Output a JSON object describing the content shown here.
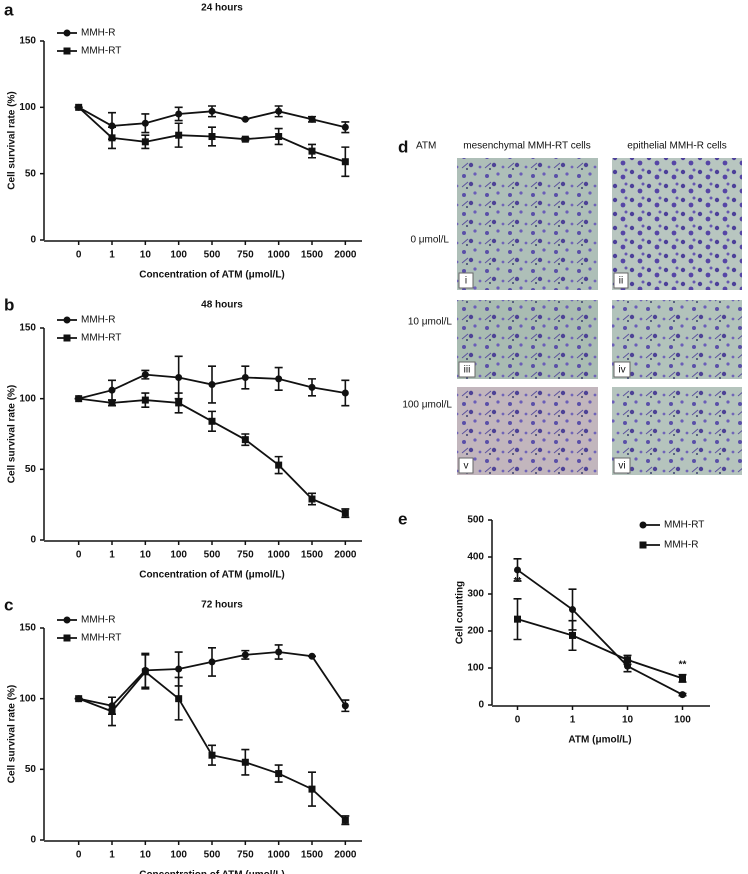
{
  "chart_data": [
    {
      "type": "line",
      "panel": "a",
      "title": "24 hours",
      "x_label": "Concentration of ATM (μmol/L)",
      "y_label": "Cell survival rate (%)",
      "categories": [
        "0",
        "1",
        "10",
        "100",
        "500",
        "750",
        "1000",
        "1500",
        "2000"
      ],
      "ylim": [
        0,
        150
      ],
      "yticks": [
        0,
        50,
        100,
        150
      ],
      "legend": "upper left",
      "series": [
        {
          "name": "MMH-R",
          "color": "#111111",
          "marker": "circle",
          "values": [
            100,
            86,
            88,
            95,
            97,
            91,
            97,
            91,
            85
          ],
          "errors": [
            0,
            10,
            7,
            5,
            4,
            0,
            4,
            2,
            4
          ]
        },
        {
          "name": "MMH-RT",
          "color": "#111111",
          "marker": "square",
          "values": [
            100,
            77,
            74,
            79,
            78,
            76,
            78,
            67,
            59
          ],
          "errors": [
            0,
            8,
            5,
            9,
            7,
            1,
            6,
            5,
            11
          ]
        }
      ]
    },
    {
      "type": "line",
      "panel": "b",
      "title": "48 hours",
      "x_label": "Concentration of ATM (μmol/L)",
      "y_label": "Cell survival rate (%)",
      "categories": [
        "0",
        "1",
        "10",
        "100",
        "500",
        "750",
        "1000",
        "1500",
        "2000"
      ],
      "ylim": [
        0,
        150
      ],
      "yticks": [
        0,
        50,
        100,
        150
      ],
      "legend": "upper left",
      "series": [
        {
          "name": "MMH-R",
          "color": "#111111",
          "marker": "circle",
          "values": [
            100,
            106,
            117,
            115,
            110,
            115,
            114,
            108,
            104
          ],
          "errors": [
            0,
            7,
            3,
            15,
            13,
            8,
            8,
            6,
            9
          ]
        },
        {
          "name": "MMH-RT",
          "color": "#111111",
          "marker": "square",
          "values": [
            100,
            97,
            99,
            97,
            84,
            71,
            53,
            29,
            19
          ],
          "errors": [
            0,
            2,
            5,
            7,
            7,
            4,
            6,
            4,
            3
          ]
        }
      ]
    },
    {
      "type": "line",
      "panel": "c",
      "title": "72 hours",
      "x_label": "Concentration of ATM (μmol/L)",
      "y_label": "Cell survival rate (%)",
      "categories": [
        "0",
        "1",
        "10",
        "100",
        "500",
        "750",
        "1000",
        "1500",
        "2000"
      ],
      "ylim": [
        0,
        150
      ],
      "yticks": [
        0,
        50,
        100,
        150
      ],
      "legend": "upper left",
      "series": [
        {
          "name": "MMH-R",
          "color": "#111111",
          "marker": "circle",
          "values": [
            100,
            95,
            120,
            121,
            126,
            131,
            133,
            130,
            95
          ],
          "errors": [
            0,
            6,
            12,
            12,
            10,
            3,
            5,
            0,
            4
          ]
        },
        {
          "name": "MMH-RT",
          "color": "#111111",
          "marker": "square",
          "values": [
            100,
            91,
            119,
            100,
            60,
            55,
            47,
            36,
            14
          ],
          "errors": [
            0,
            10,
            12,
            15,
            7,
            9,
            6,
            12,
            3
          ]
        }
      ]
    },
    {
      "type": "line",
      "panel": "e",
      "x_label": "ATM (μmol/L)",
      "y_label": "Cell counting",
      "categories": [
        "0",
        "1",
        "10",
        "100"
      ],
      "ylim": [
        0,
        500
      ],
      "yticks": [
        0,
        100,
        200,
        300,
        400,
        500
      ],
      "legend": "upper right",
      "series": [
        {
          "name": "MMH-RT",
          "color": "#111111",
          "marker": "circle",
          "values": [
            365,
            258,
            105,
            28
          ],
          "errors": [
            30,
            55,
            15,
            3
          ]
        },
        {
          "name": "MMH-R",
          "color": "#111111",
          "marker": "square",
          "values": [
            232,
            188,
            122,
            72
          ],
          "errors": [
            55,
            40,
            12,
            10
          ]
        }
      ],
      "annotations": [
        {
          "text": "**",
          "category": "0"
        },
        {
          "text": "**",
          "category": "100"
        }
      ]
    }
  ],
  "panel_d": {
    "letter": "d",
    "header": "ATM",
    "columns": [
      "mesenchymal MMH-RT cells",
      "epithelial MMH-R cells"
    ],
    "rows": [
      "0 μmol/L",
      "10 μmol/L",
      "100 μmol/L"
    ],
    "image_labels": [
      "i",
      "ii",
      "iii",
      "iv",
      "v",
      "vi"
    ]
  }
}
